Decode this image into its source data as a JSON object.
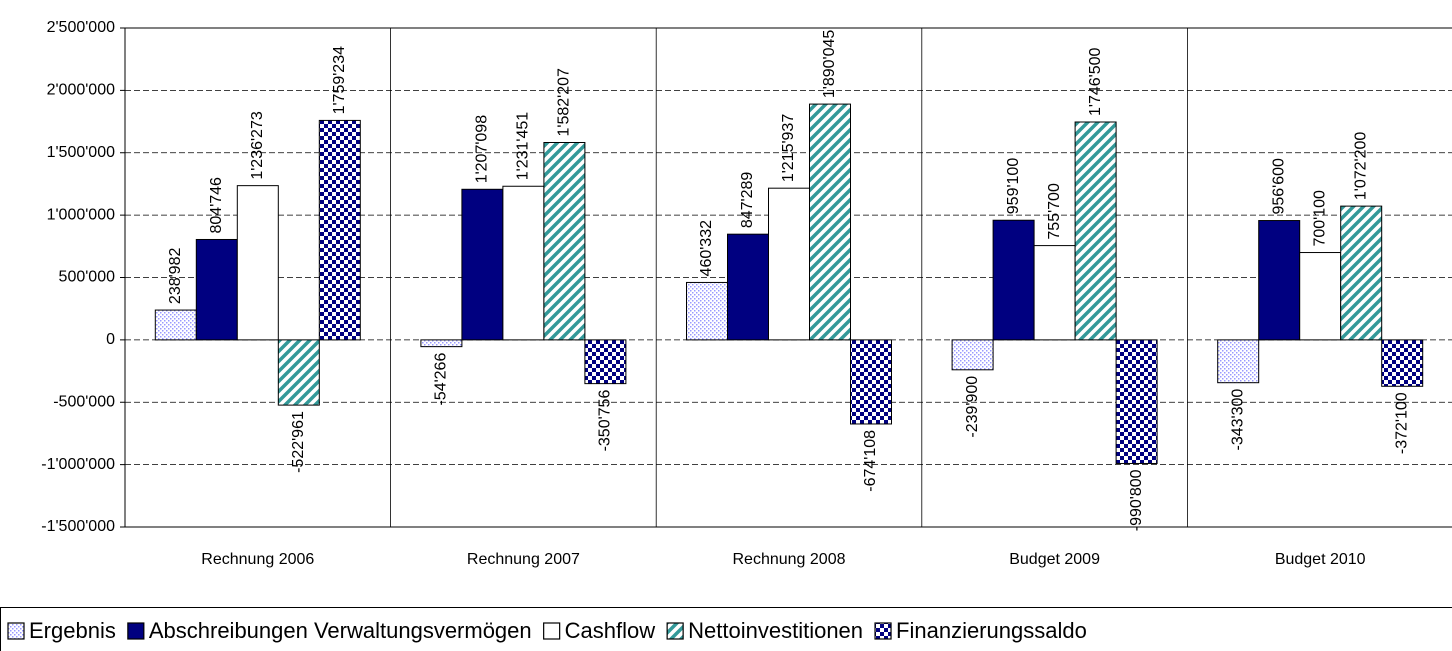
{
  "chart_data": {
    "type": "bar",
    "categories": [
      "Rechnung 2006",
      "Rechnung 2007",
      "Rechnung 2008",
      "Budget 2009",
      "Budget 2010"
    ],
    "series": [
      {
        "name": "Ergebnis",
        "color": "#9999ff",
        "values": [
          238982,
          -54266,
          460332,
          -239900,
          -343300
        ],
        "value_labels": [
          "238'982",
          "-54'266",
          "460'332",
          "-239'900",
          "-343'300"
        ]
      },
      {
        "name": "Abschreibungen Verwaltungsvermögen",
        "color": "#000080",
        "values": [
          804746,
          1207098,
          847289,
          959100,
          956600
        ],
        "value_labels": [
          "804'746",
          "1'207'098",
          "847'289",
          "959'100",
          "956'600"
        ]
      },
      {
        "name": "Cashflow",
        "color": "#ffffff",
        "values": [
          1236273,
          1231451,
          1215937,
          755700,
          700100
        ],
        "value_labels": [
          "1'236'273",
          "1'231'451",
          "1'215'937",
          "755'700",
          "700'100"
        ]
      },
      {
        "name": "Nettoinvestitionen",
        "color": "#339999",
        "values": [
          -522961,
          1582207,
          1890045,
          1746500,
          1072200
        ],
        "value_labels": [
          "-522'961",
          "1'582'207",
          "1'890'045",
          "1'746'500",
          "1'072'200"
        ]
      },
      {
        "name": "Finanzierungssaldo",
        "color": "#000080",
        "values": [
          1759234,
          -350756,
          -674108,
          -990800,
          -372100
        ],
        "value_labels": [
          "1'759'234",
          "-350'756",
          "-674'108",
          "-990'800",
          "-372'100"
        ]
      }
    ],
    "ylim": [
      -1500000,
      2500000
    ],
    "yticks": [
      {
        "value": -1500000,
        "label": "-1'500'000"
      },
      {
        "value": -1000000,
        "label": "-1'000'000"
      },
      {
        "value": -500000,
        "label": "-500'000"
      },
      0,
      {
        "value": 500000,
        "label": "500'000"
      },
      {
        "value": 1000000,
        "label": "1'000'000"
      },
      {
        "value": 1500000,
        "label": "1'500'000"
      },
      {
        "value": 2000000,
        "label": "2'000'000"
      },
      {
        "value": 2500000,
        "label": "2'500'000"
      }
    ],
    "grid": true,
    "legend": "bottom"
  }
}
